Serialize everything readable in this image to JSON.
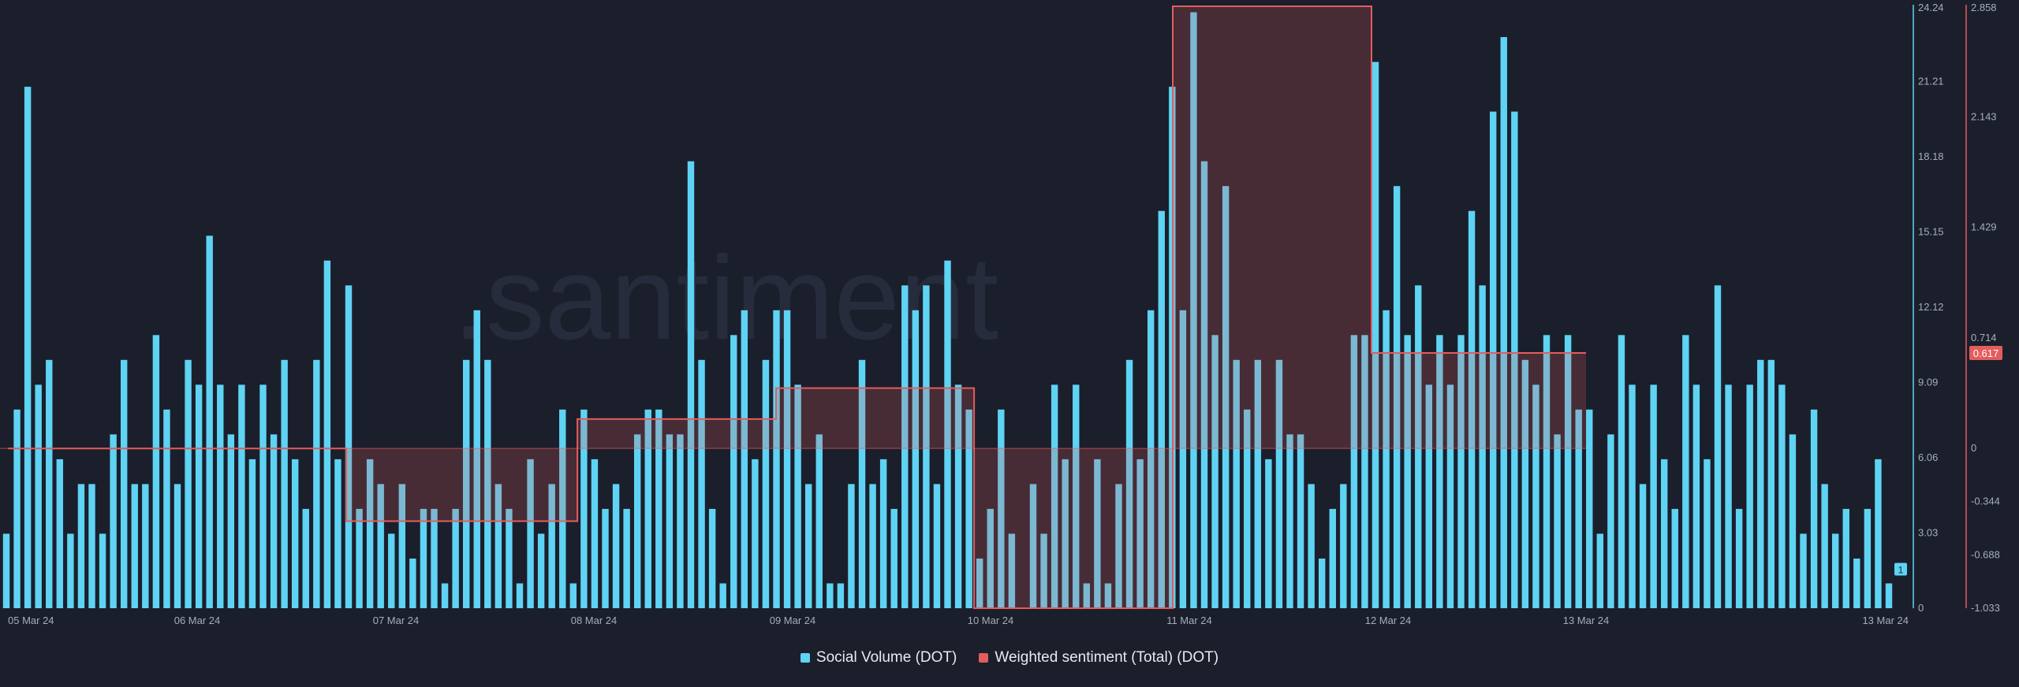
{
  "watermark": ".santiment",
  "chart_data": {
    "type": "bar",
    "x_labels": [
      "05 Mar 24",
      "06 Mar 24",
      "07 Mar 24",
      "08 Mar 24",
      "09 Mar 24",
      "10 Mar 24",
      "11 Mar 24",
      "12 Mar 24",
      "13 Mar 24",
      "13 Mar 24"
    ],
    "series": [
      {
        "name": "Social Volume (DOT)",
        "type": "bar",
        "color": "#5fd3f3",
        "axis": "right-1",
        "values": [
          3,
          8,
          21,
          9,
          10,
          6,
          3,
          5,
          5,
          3,
          7,
          10,
          5,
          5,
          11,
          8,
          5,
          10,
          9,
          15,
          9,
          7,
          9,
          6,
          9,
          7,
          10,
          6,
          4,
          10,
          14,
          6,
          13,
          4,
          6,
          5,
          3,
          5,
          2,
          4,
          4,
          1,
          4,
          10,
          12,
          10,
          5,
          4,
          1,
          6,
          3,
          5,
          8,
          1,
          8,
          6,
          4,
          5,
          4,
          7,
          8,
          8,
          7,
          7,
          18,
          10,
          4,
          1,
          11,
          12,
          6,
          10,
          12,
          12,
          9,
          5,
          7,
          1,
          1,
          5,
          10,
          5,
          6,
          4,
          13,
          12,
          13,
          5,
          14,
          9,
          8,
          2,
          4,
          8,
          3,
          0,
          5,
          3,
          9,
          6,
          9,
          1,
          6,
          1,
          5,
          10,
          6,
          12,
          16,
          21,
          12,
          24,
          18,
          11,
          17,
          10,
          8,
          10,
          6,
          10,
          7,
          7,
          5,
          2,
          4,
          5,
          11,
          11,
          22,
          12,
          17,
          11,
          13,
          9,
          11,
          9,
          11,
          16,
          13,
          20,
          23,
          20,
          10,
          9,
          11,
          7,
          11,
          8,
          8,
          3,
          7,
          11,
          9,
          5,
          9,
          6,
          4,
          11,
          9,
          6,
          13,
          9,
          4,
          9,
          10,
          10,
          9,
          7,
          3,
          8,
          5,
          3,
          4,
          2,
          4,
          6,
          1
        ],
        "last_value_label": "1"
      },
      {
        "name": "Weighted sentiment (Total) (DOT)",
        "type": "area-step",
        "color": "#e35d5d",
        "axis": "right-2",
        "segments": [
          {
            "from": "05 Mar 24 00:00",
            "to": "06 Mar 18:00",
            "value": 0.0
          },
          {
            "from": "06 Mar 18:00",
            "to": "07 Mar 24 22:00",
            "value": -0.47
          },
          {
            "from": "07 Mar 24 22:00",
            "to": "08 Mar 24 22:00",
            "value": 0.19
          },
          {
            "from": "08 Mar 24 22:00",
            "to": "09 Mar 24 22:00",
            "value": 0.39
          },
          {
            "from": "09 Mar 24 22:00",
            "to": "10 Mar 24 22:00",
            "value": -1.033
          },
          {
            "from": "10 Mar 24 22:00",
            "to": "11 Mar 24 22:00",
            "value": 2.858
          },
          {
            "from": "11 Mar 24 22:00",
            "to": "13 Mar 24 00:00",
            "value": 0.617
          }
        ],
        "last_value_label": "0.617"
      }
    ],
    "axes": {
      "right_1": {
        "ticks": [
          "0",
          "3.03",
          "6.06",
          "9.09",
          "12.12",
          "15.15",
          "18.18",
          "21.21",
          "24.24"
        ],
        "range": [
          0,
          24.24
        ],
        "color": "#5fd3f3"
      },
      "right_2": {
        "ticks": [
          "-1.033",
          "-0.688",
          "-0.344",
          "0",
          "0.714",
          "1.429",
          "2.143",
          "2.858"
        ],
        "range": [
          -1.033,
          2.858
        ],
        "color": "#e35d5d"
      }
    },
    "legend": {
      "placement": "bottom-center"
    },
    "grid": false
  },
  "legend": {
    "items": [
      {
        "label": "Social Volume (DOT)",
        "color": "#5fd3f3"
      },
      {
        "label": "Weighted sentiment (Total) (DOT)",
        "color": "#e35d5d"
      }
    ]
  }
}
